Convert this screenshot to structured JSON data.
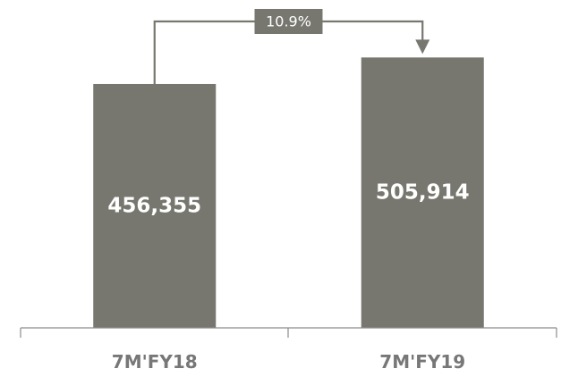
{
  "chart_data": {
    "type": "bar",
    "categories": [
      "7M'FY18",
      "7M'FY19"
    ],
    "values": [
      456355,
      505914
    ],
    "value_labels": [
      "456,355",
      "505,914"
    ],
    "growth_label": "10.9%",
    "title": "",
    "xlabel": "",
    "ylabel": "",
    "ylim": [
      0,
      580000
    ],
    "grid": false,
    "legend": "none",
    "colors": {
      "bar": "#77776f",
      "bar_text": "#ffffff",
      "axis": "#8c8c8c",
      "tick_text": "#777777",
      "connector": "#77776f",
      "growth_box": "#77776f"
    }
  }
}
